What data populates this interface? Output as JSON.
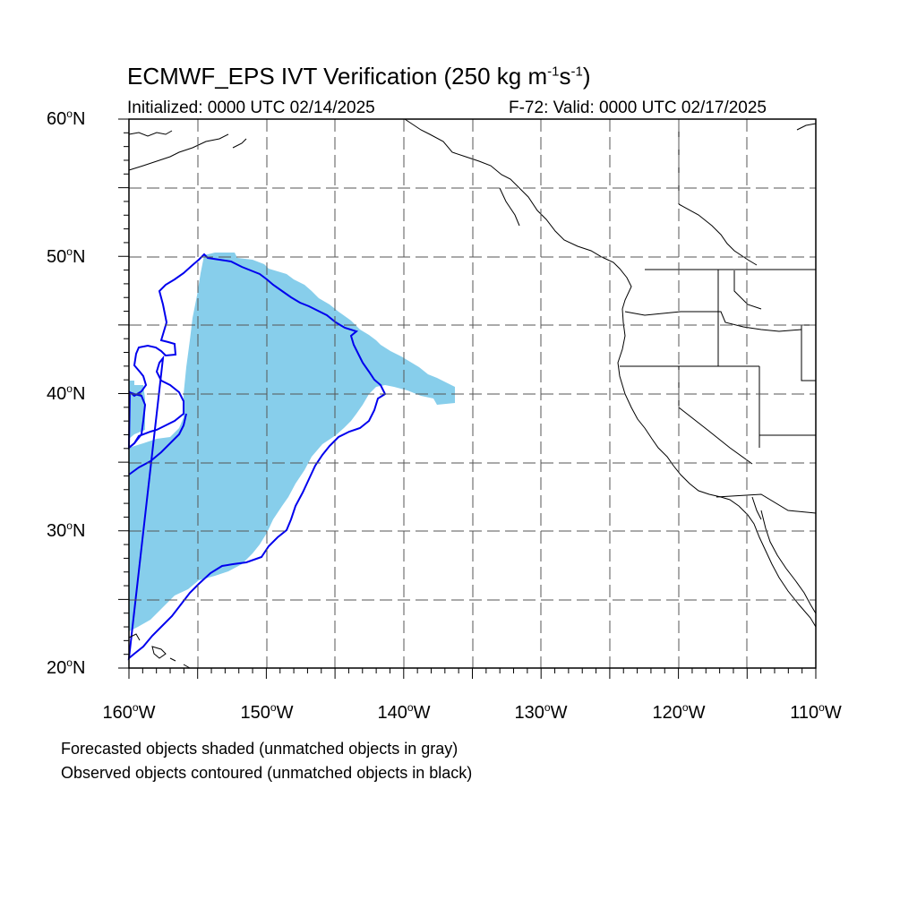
{
  "title": {
    "main": "ECMWF_EPS IVT Verification (250 kg m",
    "sup1": "-1",
    "mid": "s",
    "sup2": "-1",
    "end": ")"
  },
  "subtitle_left": "Initialized: 0000 UTC 02/14/2025",
  "subtitle_right": "F-72: Valid: 0000 UTC 02/17/2025",
  "axes": {
    "lat_labels": [
      {
        "value": "60",
        "suffix": "N"
      },
      {
        "value": "50",
        "suffix": "N"
      },
      {
        "value": "40",
        "suffix": "N"
      },
      {
        "value": "30",
        "suffix": "N"
      },
      {
        "value": "20",
        "suffix": "N"
      }
    ],
    "lon_labels": [
      {
        "value": "160",
        "suffix": "W"
      },
      {
        "value": "150",
        "suffix": "W"
      },
      {
        "value": "140",
        "suffix": "W"
      },
      {
        "value": "130",
        "suffix": "W"
      },
      {
        "value": "120",
        "suffix": "W"
      },
      {
        "value": "110",
        "suffix": "W"
      }
    ],
    "degree_symbol": "o",
    "lat_range": [
      20,
      60
    ],
    "lon_range": [
      -160,
      -110
    ]
  },
  "footnotes": [
    "Forecasted objects shaded (unmatched objects in gray)",
    "Observed objects contoured (unmatched objects in black)"
  ],
  "colors": {
    "forecast_fill": "#87CEEB",
    "observed_contour": "#0000EE",
    "coastline": "#000000",
    "grid": "#555555"
  }
}
